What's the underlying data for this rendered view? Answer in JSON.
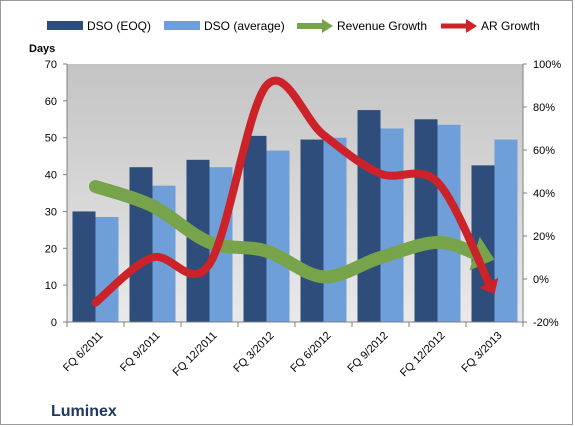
{
  "chart_data": {
    "type": "bar",
    "categories": [
      "FQ 6/2011",
      "FQ 9/2011",
      "FQ 12/2011",
      "FQ 3/2012",
      "FQ 6/2012",
      "FQ 9/2012",
      "FQ 12/2012",
      "FQ 3/2013"
    ],
    "series": [
      {
        "name": "DSO (EOQ)",
        "kind": "bar",
        "axis": "left",
        "color": "#2e4d7b",
        "values": [
          30,
          42,
          44,
          50.5,
          49.5,
          57.5,
          55,
          42.5
        ]
      },
      {
        "name": "DSO (average)",
        "kind": "bar",
        "axis": "left",
        "color": "#6f9fd8",
        "values": [
          28.5,
          37,
          42,
          46.5,
          50,
          52.5,
          53.5,
          49.5
        ]
      },
      {
        "name": "Revenue Growth",
        "kind": "arrow-line",
        "axis": "right",
        "color": "#77a34b",
        "values": [
          0.43,
          0.34,
          0.17,
          0.13,
          0.01,
          0.1,
          0.17,
          0.09
        ]
      },
      {
        "name": "AR Growth",
        "kind": "arrow-line",
        "axis": "right",
        "color": "#cc2229",
        "values": [
          -0.11,
          0.1,
          0.07,
          0.9,
          0.67,
          0.49,
          0.45,
          -0.07
        ]
      }
    ],
    "ylabel": "Days",
    "ylim": [
      0,
      70
    ],
    "yticks": [
      0,
      10,
      20,
      30,
      40,
      50,
      60,
      70
    ],
    "y2lim": [
      -0.2,
      1.0
    ],
    "y2ticks": [
      "-20%",
      "0%",
      "20%",
      "40%",
      "60%",
      "80%",
      "100%"
    ],
    "legend_position": "top",
    "grid": false,
    "plot_background": "#d0d0d0"
  },
  "brand_label": "Luminex"
}
